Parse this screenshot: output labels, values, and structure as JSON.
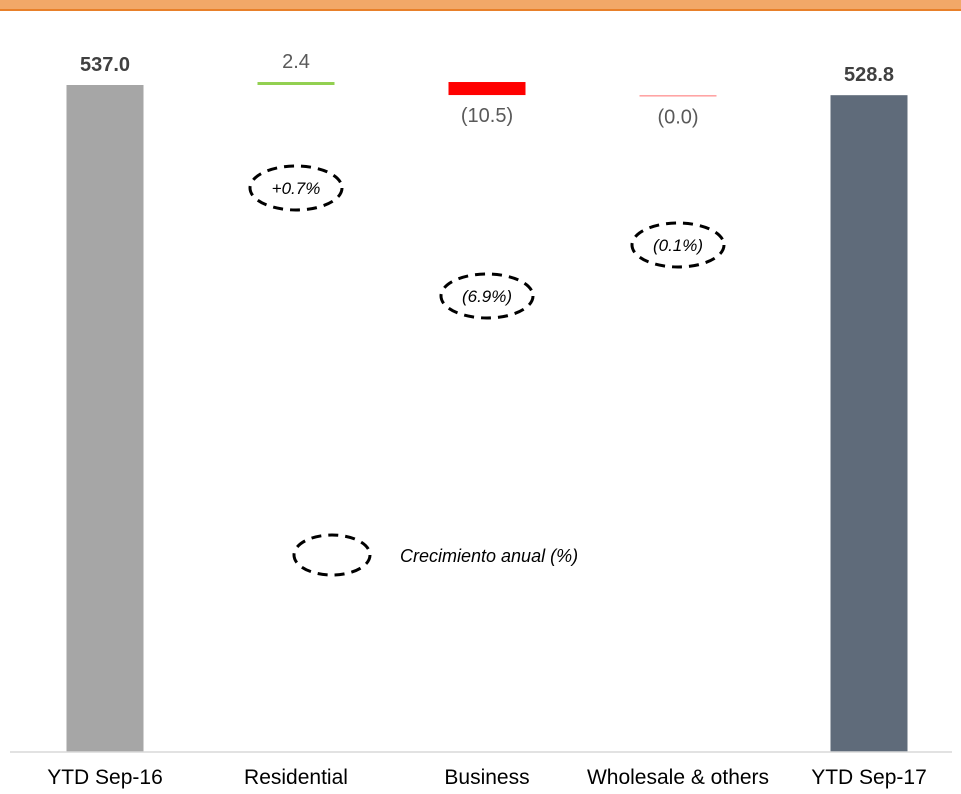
{
  "chart_data": {
    "type": "bar",
    "subtype": "waterfall",
    "categories": [
      "YTD Sep-16",
      "Residential",
      "Business",
      "Wholesale & others",
      "YTD Sep-17"
    ],
    "values": [
      537.0,
      2.4,
      -10.5,
      -0.0,
      528.8
    ],
    "value_labels": [
      "537.0",
      "2.4",
      "(10.5)",
      "(0.0)",
      "528.8"
    ],
    "kinds": [
      "total",
      "delta",
      "delta",
      "delta",
      "total"
    ],
    "colors": [
      "#a6a6a6",
      "#92d050",
      "#ff0000",
      "#ff9f9f",
      "#5f6b7a"
    ],
    "growth_labels": [
      "",
      "+0.7%",
      "(6.9%)",
      "(0.1%)",
      ""
    ],
    "legend": {
      "text": "Crecimiento anual (%)"
    },
    "title": "",
    "xlabel": "",
    "ylabel": "",
    "ylim": [
      0,
      545
    ]
  }
}
